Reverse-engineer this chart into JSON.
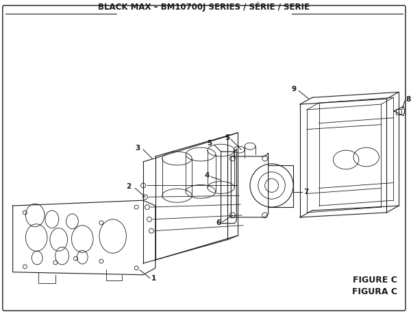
{
  "title": "BLACK MAX – BM10700J SERIES / SÉRIE / SERIE",
  "figure_label": "FIGURE C",
  "figura_label": "FIGURA C",
  "bg_color": "#f5f5f5",
  "border_color": "#1a1a1a",
  "text_color": "#1a1a1a",
  "title_fontsize": 8.5,
  "label_fontsize": 7.5,
  "figure_label_fontsize": 9
}
